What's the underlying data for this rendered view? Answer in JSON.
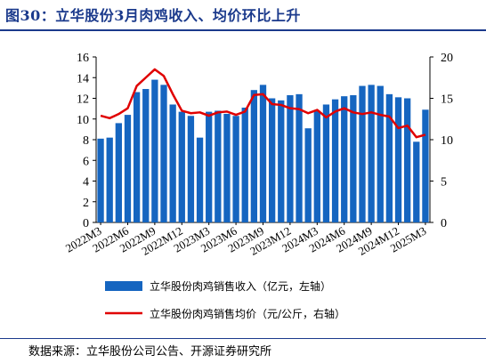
{
  "title": "图30：立华股份3月肉鸡收入、均价环比上升",
  "source": "数据来源：立华股份公司公告、开源证券研究所",
  "colors": {
    "bar": "#1565c0",
    "line": "#e00000",
    "title": "#1b3a8c"
  },
  "chart_data": {
    "type": "bar+line",
    "categories": [
      "2022M3",
      "2022M4",
      "2022M5",
      "2022M6",
      "2022M7",
      "2022M8",
      "2022M9",
      "2022M10",
      "2022M11",
      "2022M12",
      "2023M1",
      "2023M2",
      "2023M3",
      "2023M4",
      "2023M5",
      "2023M6",
      "2023M7",
      "2023M8",
      "2023M9",
      "2023M10",
      "2023M11",
      "2023M12",
      "2024M1",
      "2024M2",
      "2024M3",
      "2024M4",
      "2024M5",
      "2024M6",
      "2024M7",
      "2024M8",
      "2024M9",
      "2024M10",
      "2024M11",
      "2024M12",
      "2025M1",
      "2025M2",
      "2025M3"
    ],
    "tick_labels": [
      "2022M3",
      "2022M6",
      "2022M9",
      "2022M12",
      "2023M3",
      "2023M6",
      "2023M9",
      "2023M12",
      "2024M3",
      "2024M6",
      "2024M9",
      "2024M12",
      "2025M3"
    ],
    "left_axis": {
      "ylim": [
        0,
        16
      ],
      "ticks": [
        0,
        2,
        4,
        6,
        8,
        10,
        12,
        14,
        16
      ]
    },
    "right_axis": {
      "ylim": [
        0,
        20
      ],
      "ticks": [
        0,
        5,
        10,
        15,
        20
      ]
    },
    "grid": false,
    "legend_position": "bottom",
    "series": [
      {
        "name": "立华股份肉鸡销售收入（亿元，左轴）",
        "type": "bar",
        "axis": "left",
        "values": [
          8.1,
          8.2,
          9.6,
          10.4,
          12.6,
          12.9,
          13.8,
          13.3,
          11.4,
          10.7,
          10.3,
          8.2,
          10.7,
          10.8,
          10.5,
          10.3,
          11.1,
          12.8,
          13.3,
          12.0,
          11.8,
          12.3,
          12.4,
          9.1,
          10.8,
          11.4,
          11.9,
          12.2,
          12.3,
          13.2,
          13.3,
          13.2,
          12.4,
          12.1,
          12.0,
          7.8,
          10.9
        ]
      },
      {
        "name": "立华股份肉鸡销售均价（元/公斤，右轴）",
        "type": "line",
        "axis": "right",
        "values": [
          12.9,
          12.6,
          13.1,
          13.8,
          16.5,
          17.5,
          18.5,
          17.7,
          15.5,
          13.5,
          13.2,
          13.3,
          12.9,
          13.3,
          13.4,
          13.0,
          13.4,
          15.4,
          15.5,
          14.3,
          14.2,
          13.8,
          13.7,
          13.2,
          13.6,
          12.7,
          13.4,
          13.8,
          13.3,
          13.1,
          13.3,
          13.0,
          12.8,
          11.4,
          11.7,
          10.3,
          10.6
        ]
      }
    ]
  }
}
